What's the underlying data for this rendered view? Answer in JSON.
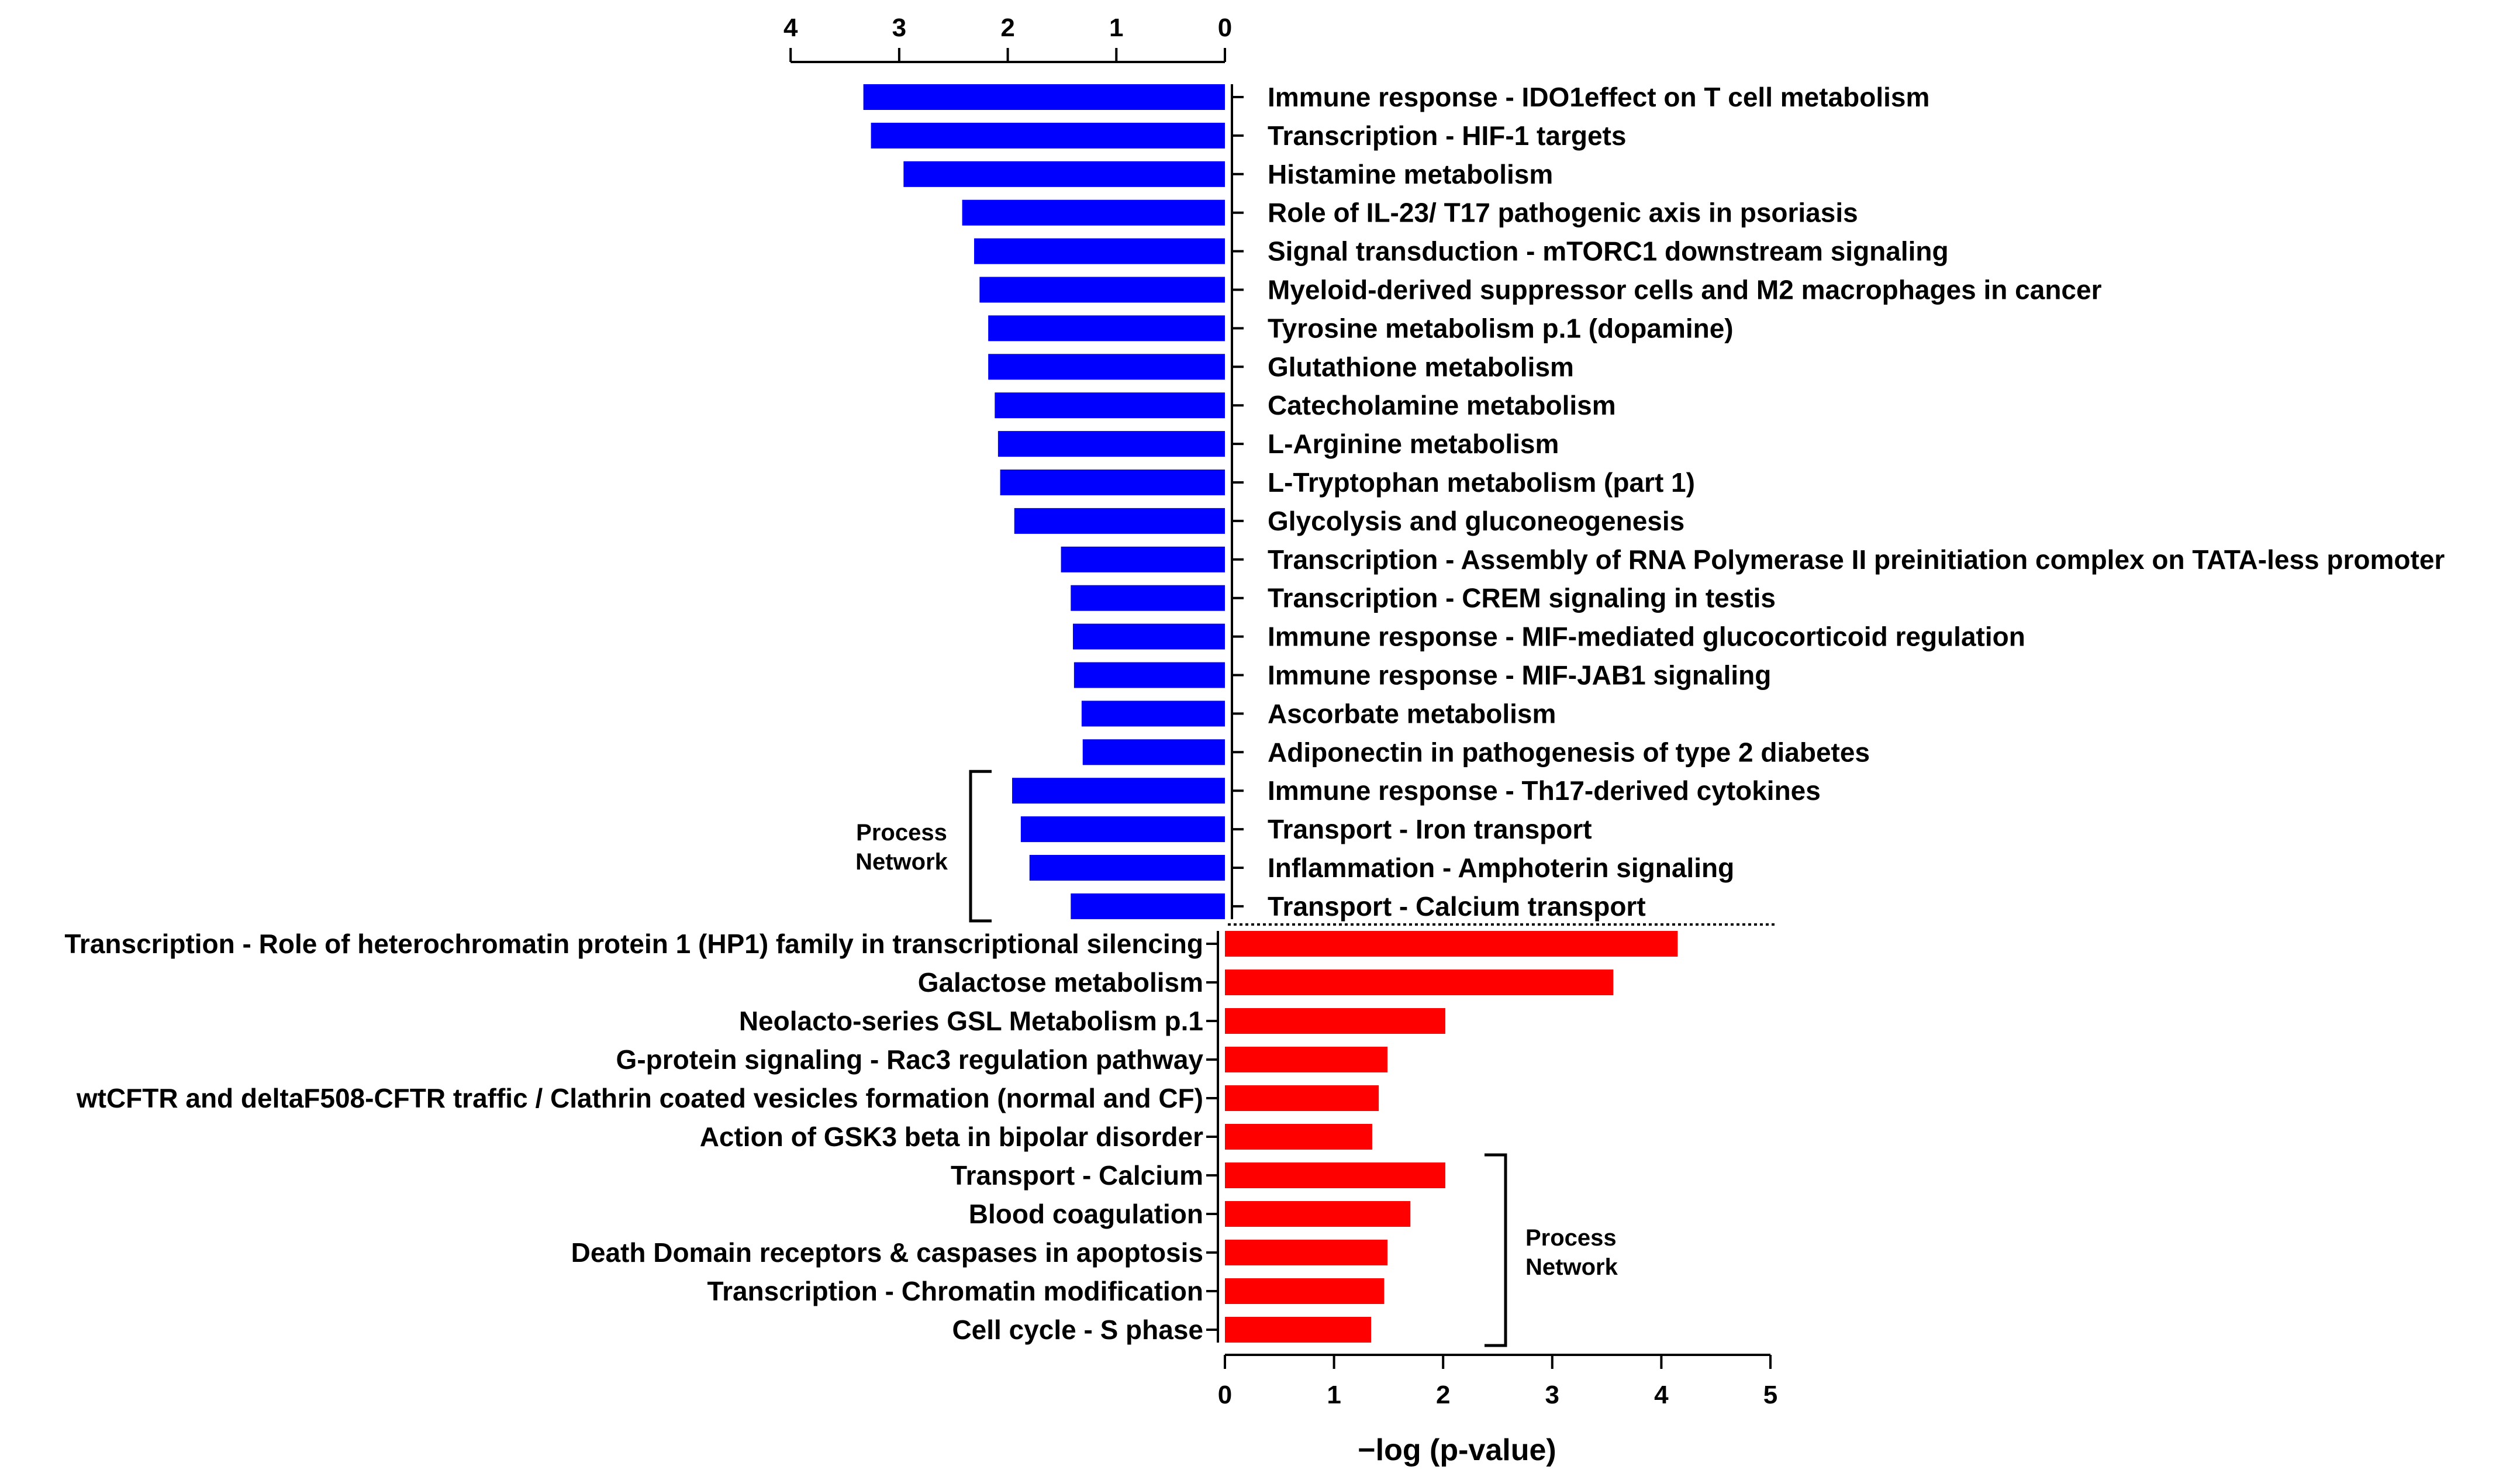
{
  "chart_data": [
    {
      "type": "bar",
      "orientation": "horizontal",
      "direction": "leftward",
      "axis": "top",
      "color": "#0000ff",
      "xlim": [
        0,
        4
      ],
      "ticks": [
        "4",
        "3",
        "2",
        "1",
        "0"
      ],
      "categories": [
        "Immune response - IDO1effect on T cell metabolism",
        "Transcription - HIF-1 targets",
        "Histamine metabolism",
        "Role of IL-23/ T17 pathogenic axis in psoriasis",
        "Signal transduction - mTORC1 downstream signaling",
        "Myeloid-derived suppressor cells and M2 macrophages in cancer",
        "Tyrosine metabolism p.1 (dopamine)",
        "Glutathione metabolism",
        "Catecholamine metabolism",
        "L-Arginine metabolism",
        "L-Tryptophan metabolism (part 1)",
        "Glycolysis and gluconeogenesis",
        "Transcription - Assembly of RNA Polymerase II preinitiation complex on TATA-less promoter",
        "Transcription - CREM signaling in testis",
        "Immune response - MIF-mediated glucocorticoid regulation",
        "Immune response - MIF-JAB1 signaling",
        "Ascorbate metabolism",
        "Adiponectin in pathogenesis of type 2 diabetes",
        "Immune response - Th17-derived cytokines",
        "Transport - Iron transport",
        "Inflammation - Amphoterin signaling",
        "Transport - Calcium transport"
      ],
      "values": [
        3.33,
        3.26,
        2.96,
        2.42,
        2.31,
        2.26,
        2.18,
        2.18,
        2.12,
        2.09,
        2.07,
        1.94,
        1.51,
        1.42,
        1.4,
        1.39,
        1.32,
        1.31,
        1.96,
        1.88,
        1.8,
        1.42
      ],
      "bracket": {
        "label_line1": "Process",
        "label_line2": "Network",
        "from_index": 18,
        "to_index": 21
      }
    },
    {
      "type": "bar",
      "orientation": "horizontal",
      "direction": "rightward",
      "axis": "bottom",
      "color": "#ff0000",
      "xlim": [
        0,
        5
      ],
      "ticks": [
        "0",
        "1",
        "2",
        "3",
        "4",
        "5"
      ],
      "xlabel": "−log (p-value)",
      "categories": [
        "Transcription - Role of heterochromatin protein 1 (HP1) family in transcriptional silencing",
        "Galactose metabolism",
        "Neolacto-series GSL Metabolism p.1",
        "G-protein signaling - Rac3 regulation pathway",
        "wtCFTR and deltaF508-CFTR traffic / Clathrin coated vesicles formation (normal and CF)",
        "Action of GSK3 beta in bipolar disorder",
        "Transport - Calcium",
        "Blood coagulation",
        "Death Domain receptors & caspases in apoptosis",
        "Transcription - Chromatin modification",
        "Cell cycle - S phase"
      ],
      "values": [
        4.15,
        3.56,
        2.02,
        1.49,
        1.41,
        1.35,
        2.02,
        1.7,
        1.49,
        1.46,
        1.34
      ],
      "bracket": {
        "label_line1": "Process",
        "label_line2": "Network",
        "from_index": 6,
        "to_index": 10
      }
    }
  ]
}
